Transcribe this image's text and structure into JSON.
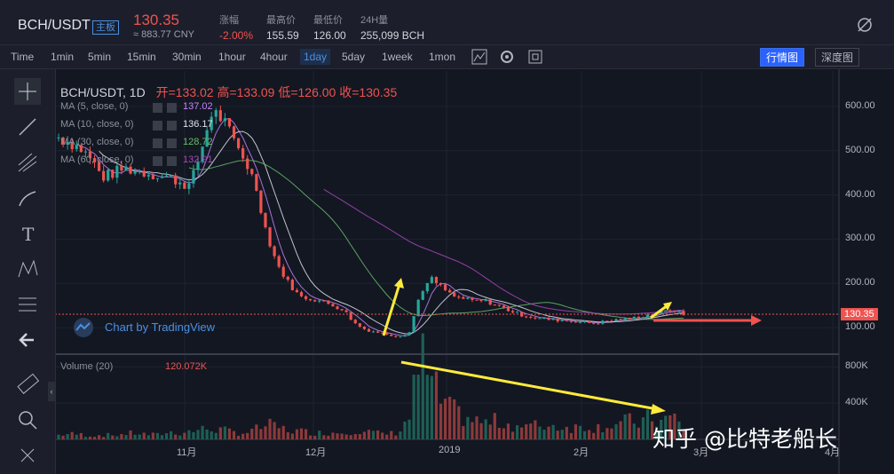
{
  "header": {
    "pair": "BCH/USDT",
    "board_tag": "主板",
    "last_price": "130.35",
    "cny_price": "≈ 883.77 CNY",
    "stats": [
      {
        "label": "涨幅",
        "value": "-2.00%",
        "color": "#ef5350"
      },
      {
        "label": "最高价",
        "value": "155.59",
        "color": "#d1d4dc"
      },
      {
        "label": "最低价",
        "value": "126.00",
        "color": "#d1d4dc"
      },
      {
        "label": "24H量",
        "value": "255,099 BCH",
        "color": "#d1d4dc"
      }
    ]
  },
  "toolbar": {
    "timeframes": [
      "Time",
      "1min",
      "5min",
      "15min",
      "30min",
      "1hour",
      "4hour",
      "1day",
      "5day",
      "1week",
      "1mon"
    ],
    "active": "1day",
    "kline_button": "行情图",
    "depth_button": "深度图"
  },
  "legend": {
    "title": "BCH/USDT, 1D",
    "ohlc": "开=133.02  高=133.09  低=126.00  收=130.35",
    "ma": [
      {
        "label": "MA (5, close, 0)",
        "value": "137.02",
        "color": "#c084fc"
      },
      {
        "label": "MA (10, close, 0)",
        "value": "136.17",
        "color": "#e0e3eb"
      },
      {
        "label": "MA (30, close, 0)",
        "value": "128.72",
        "color": "#66bb6a"
      },
      {
        "label": "MA (60, close, 0)",
        "value": "132.91",
        "color": "#ab47bc"
      }
    ],
    "volume_label": "Volume (20)",
    "volume_value": "120.072K",
    "branding": "Chart by TradingView"
  },
  "watermark": "知乎 @比特老船长",
  "colors": {
    "up": "#26a69a",
    "down": "#ef5350",
    "bg": "#131722"
  },
  "chart_data": {
    "type": "candlestick",
    "price_axis": {
      "ticks": [
        100,
        200,
        300,
        400,
        500,
        600
      ],
      "tick_labels": [
        "100.00",
        "200.00",
        "300.00",
        "400.00",
        "500.00",
        "600.00"
      ],
      "range": [
        40,
        680
      ]
    },
    "volume_axis": {
      "ticks": [
        400000,
        800000
      ],
      "tick_labels": [
        "400K",
        "800K"
      ],
      "range": [
        0,
        900000
      ]
    },
    "x_tick_labels": [
      "11月",
      "12月",
      "2019",
      "2月",
      "3月",
      "4月"
    ],
    "last_price": 130.35,
    "last_price_label": "130.35",
    "close_path": [
      530,
      520,
      505,
      480,
      440,
      450,
      460,
      455,
      450,
      445,
      440,
      430,
      420,
      500,
      590,
      570,
      520,
      480,
      420,
      310,
      240,
      200,
      170,
      165,
      160,
      150,
      140,
      110,
      95,
      90,
      85,
      80,
      90,
      180,
      210,
      190,
      170,
      165,
      160,
      160,
      150,
      140,
      130,
      125,
      120,
      118,
      116,
      115,
      112,
      110,
      115,
      118,
      120,
      125,
      130,
      135,
      140,
      130
    ],
    "volume_path": [
      50,
      60,
      55,
      40,
      50,
      45,
      60,
      70,
      55,
      50,
      80,
      70,
      90,
      110,
      120,
      100,
      80,
      70,
      110,
      160,
      130,
      100,
      90,
      80,
      70,
      75,
      80,
      100,
      90,
      70,
      60,
      80,
      250,
      900,
      600,
      400,
      300,
      250,
      200,
      180,
      200,
      170,
      150,
      140,
      160,
      150,
      140,
      130,
      150,
      130,
      160,
      170,
      200,
      180,
      240,
      190,
      260,
      120
    ]
  }
}
